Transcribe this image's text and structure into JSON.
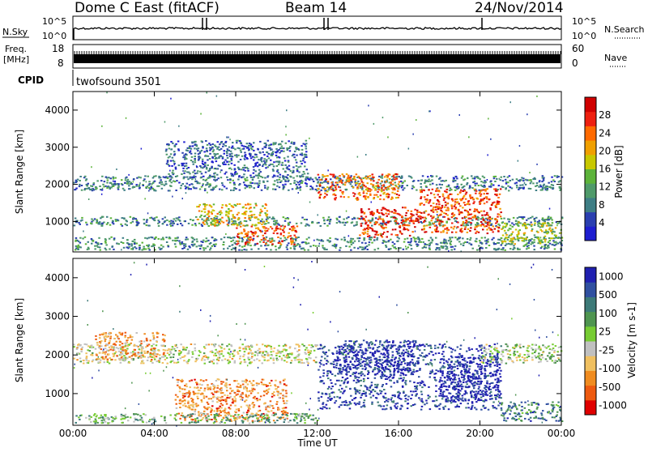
{
  "header": {
    "station": "Dome C East (fitACF)",
    "beam": "Beam 14",
    "date": "24/Nov/2014"
  },
  "nsky_panel": {
    "left_label": "N.Sky",
    "right_label": "N.Search",
    "top_tick": "10^5",
    "bottom_tick": "10^0",
    "right_top_tick": "10^5",
    "right_bottom_tick": "10^0"
  },
  "freq_panel": {
    "left_label_line1": "Freq.",
    "left_label_line2": "[MHz]",
    "left_top_tick": "18",
    "left_bottom_tick": "8",
    "right_label": "Nave",
    "right_top_tick": "60",
    "right_bottom_tick": "0"
  },
  "cpid_panel": {
    "label": "CPID",
    "value": "twofsound 3501"
  },
  "colors": {
    "power_scale": [
      "#1e1ed0",
      "#2a3fb0",
      "#3e7e85",
      "#4f9a6a",
      "#5cb33a",
      "#c8c800",
      "#f0a000",
      "#ff6a00",
      "#ee2010",
      "#d00000"
    ],
    "velocity_scale": [
      "#2020b0",
      "#3050a0",
      "#3d7a78",
      "#4f9550",
      "#77cc33",
      "#c0c0c0",
      "#f0c060",
      "#f08c20",
      "#ee5a10",
      "#e00000"
    ]
  },
  "chart_data": [
    {
      "type": "heatmap",
      "title": "Power",
      "ylabel": "Slant Range [km]",
      "xlabel": "Time UT",
      "x_ticks": [
        "00:00",
        "04:00",
        "08:00",
        "12:00",
        "16:00",
        "20:00",
        "00:00"
      ],
      "y_ticks": [
        "1000",
        "2000",
        "3000",
        "4000"
      ],
      "x_range_hours": [
        0,
        24
      ],
      "y_range_km": [
        180,
        4500
      ],
      "colorbar": {
        "label": "Power [dB]",
        "ticks": [
          "4",
          "8",
          "12",
          "16",
          "20",
          "24",
          "28"
        ],
        "range": [
          0,
          30
        ]
      },
      "regions": [
        {
          "t0": 0.0,
          "t1": 24.0,
          "r0": 1850,
          "r1": 2250,
          "level": 0.25
        },
        {
          "t0": 0.0,
          "t1": 24.0,
          "r0": 900,
          "r1": 1150,
          "level": 0.3
        },
        {
          "t0": 0.0,
          "t1": 24.0,
          "r0": 250,
          "r1": 600,
          "level": 0.3
        },
        {
          "t0": 4.5,
          "t1": 11.5,
          "r0": 2200,
          "r1": 3200,
          "level": 0.2
        },
        {
          "t0": 6.0,
          "t1": 9.5,
          "r0": 900,
          "r1": 1500,
          "level": 0.6
        },
        {
          "t0": 8.0,
          "t1": 11.0,
          "r0": 400,
          "r1": 900,
          "level": 0.8
        },
        {
          "t0": 12.0,
          "t1": 16.0,
          "r0": 1600,
          "r1": 2300,
          "level": 0.75
        },
        {
          "t0": 14.0,
          "t1": 17.0,
          "r0": 600,
          "r1": 1400,
          "level": 0.85
        },
        {
          "t0": 17.0,
          "t1": 21.0,
          "r0": 700,
          "r1": 1900,
          "level": 0.8
        },
        {
          "t0": 21.0,
          "t1": 24.0,
          "r0": 400,
          "r1": 1000,
          "level": 0.5
        }
      ]
    },
    {
      "type": "heatmap",
      "title": "Velocity",
      "ylabel": "Slant Range [km]",
      "xlabel": "Time UT",
      "x_ticks": [
        "00:00",
        "04:00",
        "08:00",
        "12:00",
        "16:00",
        "20:00",
        "00:00"
      ],
      "y_ticks": [
        "1000",
        "2000",
        "3000",
        "4000"
      ],
      "x_range_hours": [
        0,
        24
      ],
      "y_range_km": [
        180,
        4500
      ],
      "colorbar": {
        "label": "Velocity [m s-1]",
        "ticks": [
          "1000",
          "500",
          "100",
          "25",
          "-25",
          "-100",
          "-500",
          "-1000"
        ],
        "range": [
          -1000,
          1000
        ]
      },
      "regions": [
        {
          "t0": 0.0,
          "t1": 12.0,
          "r0": 1800,
          "r1": 2300,
          "level": 0.55
        },
        {
          "t0": 1.0,
          "t1": 4.5,
          "r0": 1900,
          "r1": 2600,
          "level": 0.7
        },
        {
          "t0": 5.0,
          "t1": 10.5,
          "r0": 300,
          "r1": 1400,
          "level": 0.75
        },
        {
          "t0": 0.0,
          "t1": 12.0,
          "r0": 250,
          "r1": 500,
          "level": 0.4
        },
        {
          "t0": 12.0,
          "t1": 21.0,
          "r0": 600,
          "r1": 2300,
          "level": 0.1
        },
        {
          "t0": 13.0,
          "t1": 17.0,
          "r0": 1500,
          "r1": 2400,
          "level": 0.05
        },
        {
          "t0": 18.0,
          "t1": 21.0,
          "r0": 800,
          "r1": 2000,
          "level": 0.0
        },
        {
          "t0": 21.0,
          "t1": 24.0,
          "r0": 300,
          "r1": 800,
          "level": 0.25
        },
        {
          "t0": 20.0,
          "t1": 24.0,
          "r0": 1800,
          "r1": 2300,
          "level": 0.5
        }
      ]
    }
  ],
  "x_axis_label": "Time UT"
}
